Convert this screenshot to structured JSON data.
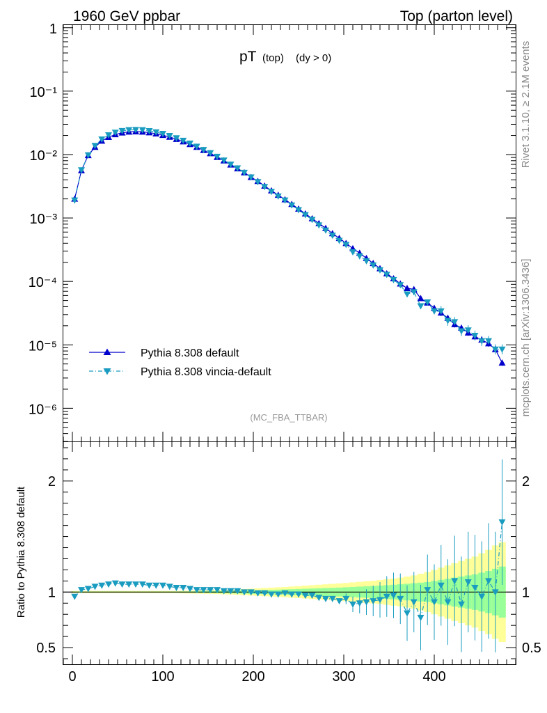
{
  "header": {
    "left": "1960 GeV ppbar",
    "right": "Top (parton level)"
  },
  "side_labels": {
    "rivet": "Rivet 3.1.10, ≥ 2.1M events",
    "mcplots": "mcplots.cern.ch [arXiv:1306.3436]"
  },
  "analysis_label": "(MC_FBA_TTBAR)",
  "colors": {
    "pythia_default": "#0000cc",
    "vincia": "#1a9cc0",
    "band_yellow": "#ffff99",
    "band_green": "#99ff99"
  },
  "chart_data": [
    {
      "type": "line",
      "title_main": "pT",
      "title_sub1": "(top)",
      "title_sub2": "(dy > 0)",
      "xlabel": "",
      "ylabel": "",
      "xlim": [
        -10,
        490
      ],
      "ylim": [
        3e-07,
        1.1
      ],
      "yscale": "log",
      "y_tick_labels": [
        "1",
        "10⁻¹",
        "10⁻²",
        "10⁻³",
        "10⁻⁴",
        "10⁻⁵",
        "10⁻⁶"
      ],
      "legend": [
        "Pythia 8.308 default",
        "Pythia 8.308 vincia-default"
      ],
      "legend_position": "bottom-left",
      "x": [
        2.5,
        10,
        17.5,
        25,
        32.5,
        40,
        47.5,
        55,
        62.5,
        70,
        77.5,
        85,
        92.5,
        100,
        107.5,
        115,
        122.5,
        130,
        137.5,
        145,
        152.5,
        160,
        167.5,
        175,
        182.5,
        190,
        197.5,
        205,
        212.5,
        220,
        227.5,
        235,
        242.5,
        250,
        257.5,
        265,
        272.5,
        280,
        287.5,
        295,
        302.5,
        310,
        317.5,
        325,
        332.5,
        340,
        347.5,
        355,
        362.5,
        370,
        377.5,
        385,
        392.5,
        400,
        407.5,
        415,
        422.5,
        430,
        437.5,
        445,
        452.5,
        460,
        467.5,
        475
      ],
      "series": [
        {
          "name": "Pythia 8.308 default",
          "marker": "triangle-up",
          "values": [
            0.002,
            0.0056,
            0.0097,
            0.0131,
            0.0164,
            0.0188,
            0.0207,
            0.0221,
            0.0228,
            0.023,
            0.0228,
            0.0222,
            0.0213,
            0.0202,
            0.0189,
            0.0175,
            0.016,
            0.0145,
            0.0131,
            0.0117,
            0.0104,
            0.0091,
            0.008,
            0.0069,
            0.006,
            0.0052,
            0.0044,
            0.0038,
            0.0032,
            0.0027,
            0.0023,
            0.00195,
            0.00165,
            0.00139,
            0.00117,
            0.00098,
            0.00082,
            0.00069,
            0.00057,
            0.00048,
            0.0004,
            0.00033,
            0.00028,
            0.000232,
            0.000193,
            0.00016,
            0.000133,
            0.000111,
            9.2e-05,
            7.8e-05,
            7.5e-05,
            5.4e-05,
            4.6e-05,
            3.8e-05,
            3.2e-05,
            2.65e-05,
            2.1e-05,
            1.85e-05,
            1.55e-05,
            1.35e-05,
            1.2e-05,
            1.05e-05,
            8.5e-06,
            5.2e-06
          ]
        },
        {
          "name": "Pythia 8.308 vincia-default",
          "marker": "triangle-down",
          "values": [
            0.0019,
            0.0057,
            0.0098,
            0.0138,
            0.0174,
            0.0203,
            0.0223,
            0.0237,
            0.0244,
            0.0246,
            0.0244,
            0.0236,
            0.0226,
            0.0213,
            0.0198,
            0.0182,
            0.0166,
            0.015,
            0.0134,
            0.0119,
            0.0106,
            0.0093,
            0.0081,
            0.007,
            0.0061,
            0.0052,
            0.0044,
            0.0037,
            0.0031,
            0.0026,
            0.0022,
            0.0019,
            0.00159,
            0.00134,
            0.00112,
            0.00094,
            0.00077,
            0.00064,
            0.00053,
            0.00044,
            0.00038,
            0.00029,
            0.00025,
            0.00021,
            0.00018,
            0.000151,
            0.000128,
            0.000106,
            8.8e-05,
            6.3e-05,
            6.8e-05,
            4.1e-05,
            4.7e-05,
            3.4e-05,
            3.4e-05,
            2.4e-05,
            2.3e-05,
            1.65e-05,
            1.7e-05,
            1.4e-05,
            1.15e-05,
            1.15e-05,
            8.5e-06,
            8.5e-06
          ]
        }
      ]
    },
    {
      "type": "line",
      "ylabel": "Ratio to Pythia 8.308 default",
      "xlim": [
        -10,
        490
      ],
      "ylim": [
        0.35,
        2.35
      ],
      "x_tick_labels": [
        "0",
        "100",
        "200",
        "300",
        "400"
      ],
      "y_tick_labels": [
        "0.5",
        "1",
        "2"
      ],
      "band_yellow_halfwidth": [
        0.01,
        0.01,
        0.01,
        0.01,
        0.01,
        0.01,
        0.01,
        0.01,
        0.01,
        0.01,
        0.01,
        0.01,
        0.01,
        0.01,
        0.01,
        0.01,
        0.012,
        0.013,
        0.014,
        0.015,
        0.016,
        0.018,
        0.02,
        0.022,
        0.025,
        0.028,
        0.031,
        0.034,
        0.037,
        0.04,
        0.043,
        0.046,
        0.05,
        0.054,
        0.058,
        0.062,
        0.066,
        0.07,
        0.074,
        0.078,
        0.082,
        0.087,
        0.092,
        0.097,
        0.102,
        0.108,
        0.115,
        0.122,
        0.13,
        0.14,
        0.15,
        0.165,
        0.18,
        0.2,
        0.22,
        0.24,
        0.26,
        0.28,
        0.3,
        0.32,
        0.35,
        0.38,
        0.42,
        0.45
      ],
      "band_green_halfwidth": [
        0.005,
        0.005,
        0.005,
        0.005,
        0.005,
        0.005,
        0.005,
        0.005,
        0.005,
        0.005,
        0.005,
        0.005,
        0.005,
        0.005,
        0.005,
        0.005,
        0.006,
        0.006,
        0.007,
        0.008,
        0.009,
        0.01,
        0.011,
        0.012,
        0.013,
        0.014,
        0.016,
        0.017,
        0.019,
        0.02,
        0.022,
        0.024,
        0.026,
        0.028,
        0.03,
        0.032,
        0.034,
        0.036,
        0.038,
        0.04,
        0.043,
        0.046,
        0.049,
        0.052,
        0.055,
        0.058,
        0.062,
        0.066,
        0.07,
        0.075,
        0.08,
        0.085,
        0.09,
        0.1,
        0.11,
        0.12,
        0.13,
        0.14,
        0.15,
        0.16,
        0.175,
        0.19,
        0.21,
        0.23
      ],
      "ratio_values": [
        0.96,
        1.02,
        1.03,
        1.05,
        1.06,
        1.07,
        1.08,
        1.07,
        1.07,
        1.07,
        1.07,
        1.06,
        1.06,
        1.06,
        1.05,
        1.04,
        1.04,
        1.03,
        1.02,
        1.02,
        1.02,
        1.02,
        1.01,
        1.01,
        1.01,
        1.0,
        1.0,
        0.99,
        0.99,
        0.98,
        0.98,
        0.99,
        0.98,
        0.98,
        0.97,
        0.97,
        0.95,
        0.94,
        0.94,
        0.92,
        0.94,
        0.89,
        0.9,
        0.91,
        0.92,
        0.93,
        0.96,
        0.97,
        0.94,
        0.81,
        0.91,
        0.77,
        1.02,
        0.91,
        1.06,
        0.91,
        1.1,
        0.89,
        1.09,
        1.04,
        0.96,
        1.1,
        1.0,
        1.63
      ]
    }
  ]
}
